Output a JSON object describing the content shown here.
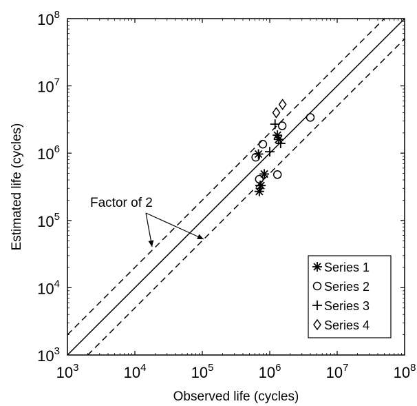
{
  "chart_data": {
    "type": "scatter",
    "xlabel": "Observed life (cycles)",
    "ylabel": "Estimated life (cycles)",
    "xscale": "log",
    "yscale": "log",
    "xlim": [
      1000,
      100000000
    ],
    "ylim": [
      1000,
      100000000
    ],
    "tick_base": "10",
    "tick_exponents": [
      "3",
      "4",
      "5",
      "6",
      "7",
      "8"
    ],
    "grid": false,
    "legend_position": "bottom-right",
    "reference_lines": [
      {
        "name": "y = x",
        "style": "solid",
        "factor": 1
      },
      {
        "name": "y = 2x",
        "style": "dashed",
        "factor": 2
      },
      {
        "name": "y = x/2",
        "style": "dashed",
        "factor": 0.5
      }
    ],
    "annotation": {
      "text": "Factor of 2",
      "targets": [
        "y = 2x",
        "y = x/2"
      ]
    },
    "series": [
      {
        "name": "Series 1",
        "marker": "asterisk",
        "points": [
          [
            680000,
            970000
          ],
          [
            700000,
            270000
          ],
          [
            740000,
            330000
          ],
          [
            830000,
            490000
          ],
          [
            1300000,
            1850000
          ],
          [
            1350000,
            1600000
          ]
        ]
      },
      {
        "name": "Series 2",
        "marker": "circle",
        "points": [
          [
            620000,
            870000
          ],
          [
            700000,
            410000
          ],
          [
            790000,
            1360000
          ],
          [
            1300000,
            480000
          ],
          [
            1530000,
            2550000
          ],
          [
            4000000,
            3400000
          ]
        ]
      },
      {
        "name": "Series 3",
        "marker": "plus",
        "points": [
          [
            720000,
            330000
          ],
          [
            1000000,
            1050000
          ],
          [
            1200000,
            2700000
          ],
          [
            1450000,
            1400000
          ]
        ]
      },
      {
        "name": "Series 4",
        "marker": "diamond",
        "points": [
          [
            1250000,
            4000000
          ],
          [
            1550000,
            5300000
          ]
        ]
      }
    ]
  }
}
